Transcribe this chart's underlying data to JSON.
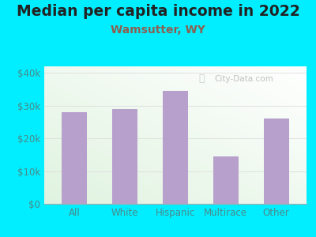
{
  "title": "Median per capita income in 2022",
  "subtitle": "Wamsutter, WY",
  "categories": [
    "All",
    "White",
    "Hispanic",
    "Multirace",
    "Other"
  ],
  "values": [
    28000,
    29000,
    34500,
    14500,
    26000
  ],
  "bar_color": "#b8a0cc",
  "title_fontsize": 13.5,
  "subtitle_fontsize": 10,
  "subtitle_color": "#8B6050",
  "tick_label_color": "#4a8a8a",
  "background_outer": "#00eeff",
  "ylim": [
    0,
    42000
  ],
  "yticks": [
    0,
    10000,
    20000,
    30000,
    40000
  ],
  "ytick_labels": [
    "$0",
    "$10k",
    "$20k",
    "$30k",
    "$40k"
  ],
  "watermark": "City-Data.com"
}
